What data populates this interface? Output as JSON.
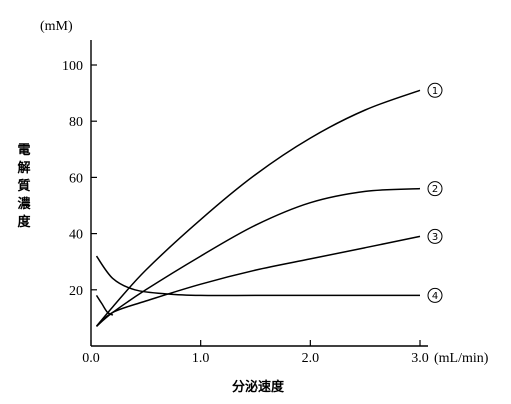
{
  "chart_data": {
    "type": "line",
    "y_unit": "(mM)",
    "x_unit": "(mL/min)",
    "ylabel": "電解質濃度",
    "xlabel": "分泌速度",
    "xlim": [
      0,
      3.0
    ],
    "ylim": [
      0,
      100
    ],
    "x_ticks": [
      0.0,
      1.0,
      2.0,
      3.0
    ],
    "x_tick_labels": [
      "0.0",
      "1.0",
      "2.0",
      "3.0"
    ],
    "y_ticks": [
      20,
      40,
      60,
      80,
      100
    ],
    "y_tick_labels": [
      "20",
      "40",
      "60",
      "80",
      "100"
    ],
    "grid": false,
    "series": [
      {
        "name": "①",
        "x": [
          0.05,
          0.2,
          0.5,
          1.0,
          1.5,
          2.0,
          2.5,
          3.0
        ],
        "y": [
          7,
          14,
          27,
          45,
          61,
          74,
          84,
          91
        ]
      },
      {
        "name": "②",
        "x": [
          0.05,
          0.2,
          0.5,
          1.0,
          1.5,
          2.0,
          2.5,
          3.0
        ],
        "y": [
          7,
          12,
          20,
          32,
          43,
          51,
          55,
          56
        ]
      },
      {
        "name": "③",
        "x": [
          0.05,
          0.2,
          0.5,
          1.0,
          1.5,
          2.0,
          2.5,
          3.0
        ],
        "y": [
          7,
          12,
          16,
          22,
          27,
          31,
          35,
          39
        ]
      },
      {
        "name": "④",
        "x": [
          0.05,
          0.2,
          0.4,
          0.7,
          1.0,
          1.5,
          2.0,
          2.5,
          3.0
        ],
        "y": [
          32,
          24,
          20,
          18.5,
          18,
          18,
          18,
          18,
          18
        ]
      },
      {
        "name": "",
        "x": [
          0.05,
          0.1,
          0.15,
          0.2
        ],
        "y": [
          18,
          15,
          12,
          11
        ]
      }
    ]
  }
}
